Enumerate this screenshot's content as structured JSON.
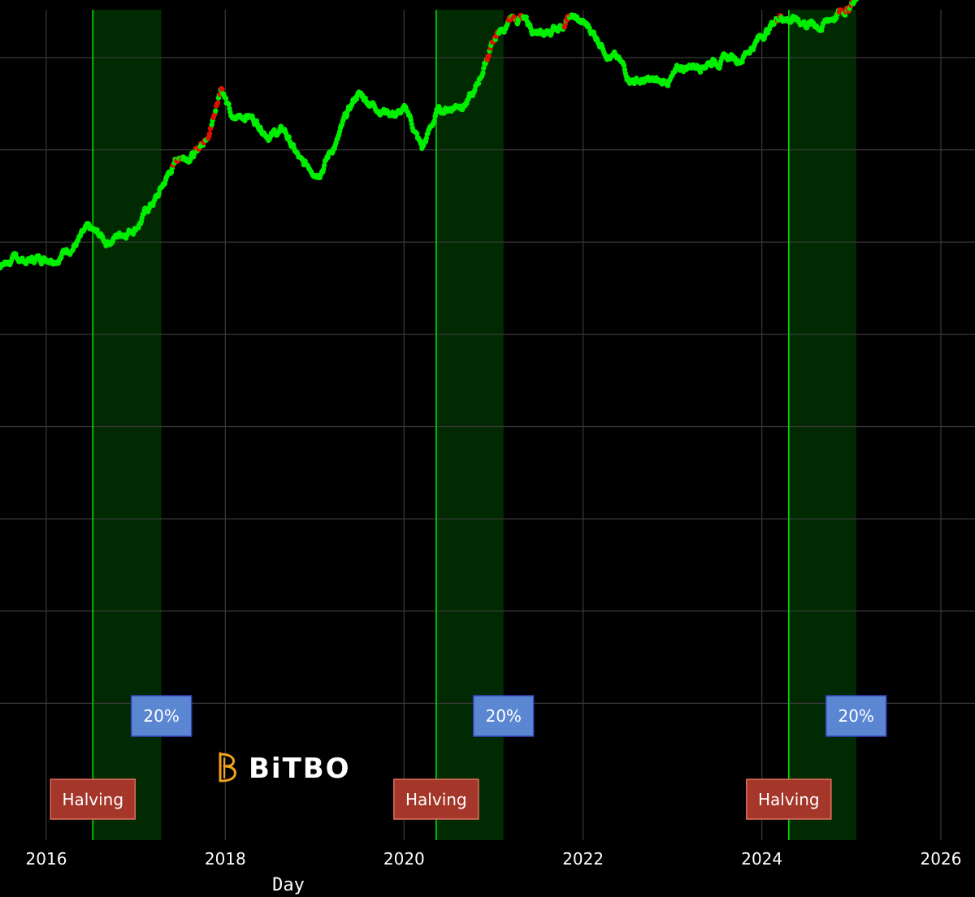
{
  "colors": {
    "background": "#000000",
    "grid": "#3a3a3a",
    "band_fill": "#022a02",
    "halving_line": "#00e000",
    "series_up": "#00ee00",
    "series_hot": "#dd1100",
    "halving_box_fill": "#a5362a",
    "halving_box_border": "#e07060",
    "pct_box_fill": "#5a86d2",
    "pct_box_border": "#3344bb",
    "logo_accent": "#f2a21a"
  },
  "logo": {
    "text": "BiTBO"
  },
  "chart_data": {
    "type": "scatter",
    "xlabel": "Day",
    "ylabel": "",
    "x_ticks": [
      "2016",
      "2018",
      "2020",
      "2022",
      "2024",
      "2026"
    ],
    "xlim": [
      "2015-01-01",
      "2026-04-15"
    ],
    "ylim": [
      0,
      9
    ],
    "y_gridlines": [
      1,
      2,
      3,
      4,
      5,
      6,
      7,
      8
    ],
    "halvings": [
      {
        "date": "2016-07-09",
        "band_end": "2017-04-15",
        "label": "Halving",
        "pct_label": "20%"
      },
      {
        "date": "2020-05-11",
        "band_end": "2021-02-10",
        "label": "Halving",
        "pct_label": "20%"
      },
      {
        "date": "2024-04-20",
        "band_end": "2025-01-20",
        "label": "Halving",
        "pct_label": "20%"
      }
    ],
    "series": [
      {
        "values": [
          [
            "2015-01-01",
            5.6
          ],
          [
            "2015-03-01",
            5.5
          ],
          [
            "2015-05-01",
            5.7
          ],
          [
            "2015-08-01",
            5.8
          ],
          [
            "2015-11-01",
            5.8
          ],
          [
            "2016-03-01",
            5.9
          ],
          [
            "2016-06-15",
            6.1
          ],
          [
            "2016-09-01",
            6.0
          ],
          [
            "2017-01-01",
            6.2
          ],
          [
            "2017-04-01",
            6.5
          ],
          [
            "2017-06-15",
            6.9
          ],
          [
            "2017-09-15",
            7.0
          ],
          [
            "2017-11-15",
            7.4
          ],
          [
            "2017-12-17",
            7.75
          ],
          [
            "2018-02-01",
            7.3
          ],
          [
            "2018-04-01",
            7.4
          ],
          [
            "2018-07-01",
            7.2
          ],
          [
            "2018-09-01",
            7.2
          ],
          [
            "2018-11-15",
            6.8
          ],
          [
            "2019-01-15",
            6.8
          ],
          [
            "2019-04-01",
            7.1
          ],
          [
            "2019-06-25",
            7.6
          ],
          [
            "2019-09-01",
            7.5
          ],
          [
            "2019-12-01",
            7.4
          ],
          [
            "2020-01-15",
            7.4
          ],
          [
            "2020-03-15",
            7.0
          ],
          [
            "2020-05-15",
            7.4
          ],
          [
            "2020-08-01",
            7.5
          ],
          [
            "2020-10-15",
            7.6
          ],
          [
            "2020-12-31",
            8.2
          ],
          [
            "2021-04-14",
            8.45
          ],
          [
            "2021-07-15",
            8.2
          ],
          [
            "2021-11-10",
            8.45
          ],
          [
            "2022-02-01",
            8.3
          ],
          [
            "2022-05-15",
            8.0
          ],
          [
            "2022-07-01",
            7.8
          ],
          [
            "2022-11-15",
            7.7
          ],
          [
            "2023-03-01",
            7.9
          ],
          [
            "2023-06-15",
            8.0
          ],
          [
            "2023-10-01",
            8.0
          ],
          [
            "2024-03-14",
            8.45
          ],
          [
            "2024-06-01",
            8.4
          ],
          [
            "2024-09-01",
            8.35
          ],
          [
            "2024-11-15",
            8.5
          ],
          [
            "2025-01-20",
            8.6
          ]
        ],
        "hot_segments": [
          [
            "2017-06-01",
            "2017-07-15"
          ],
          [
            "2017-09-01",
            "2017-12-20"
          ],
          [
            "2020-12-01",
            "2021-01-20"
          ],
          [
            "2021-03-01",
            "2021-05-01"
          ],
          [
            "2021-10-15",
            "2021-11-15"
          ],
          [
            "2024-03-01",
            "2024-03-20"
          ],
          [
            "2024-11-10",
            "2025-01-10"
          ]
        ]
      }
    ]
  }
}
